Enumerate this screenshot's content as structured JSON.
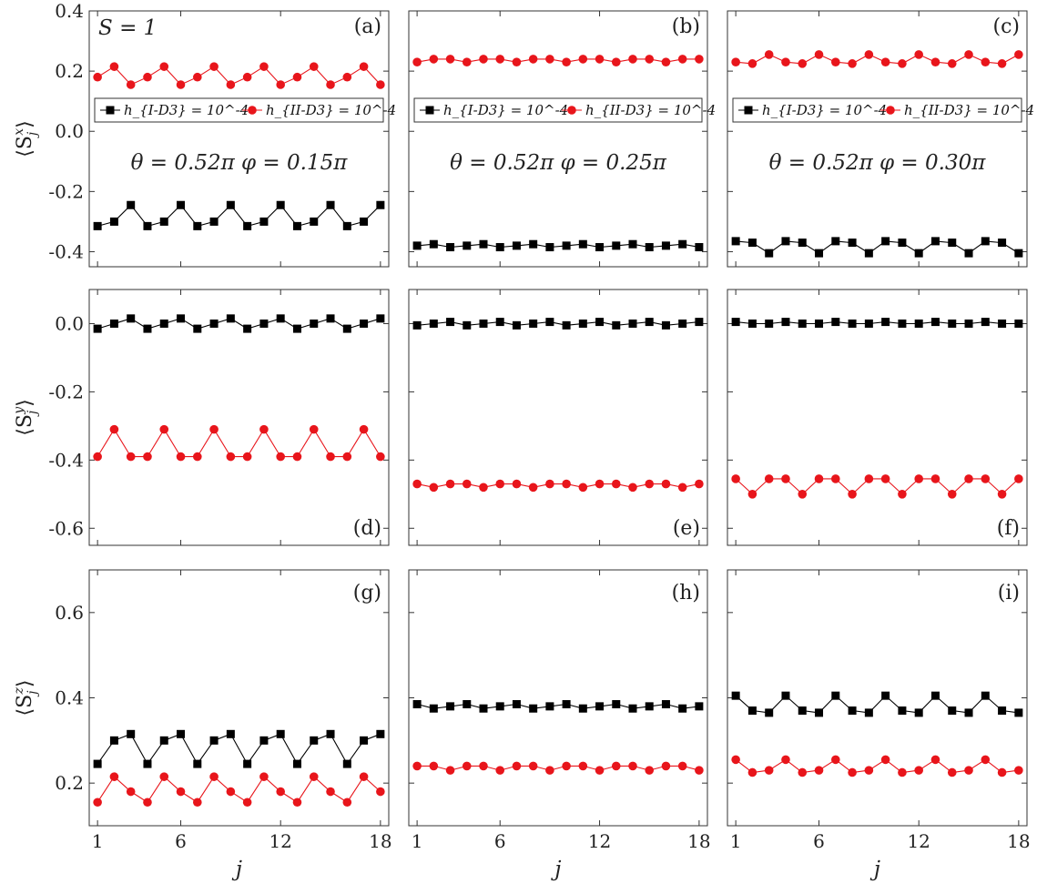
{
  "chart_data": {
    "type": "line",
    "x_label": "j",
    "x_ticks": [
      1,
      6,
      12,
      18
    ],
    "x": [
      1,
      2,
      3,
      4,
      5,
      6,
      7,
      8,
      9,
      10,
      11,
      12,
      13,
      14,
      15,
      16,
      17,
      18
    ],
    "panel_text": "S = 1",
    "legend_labels": [
      "h_{I-D3} = 10^-4",
      "h_{II-D3} = 10^-4"
    ],
    "colors": {
      "series1": "#000000",
      "series2": "#e8151b"
    },
    "rows": [
      {
        "ylabel": "⟨S_j^x⟩",
        "ylim": [
          -0.45,
          0.4
        ],
        "yticks": [
          0.4,
          0.2,
          0.0,
          -0.2,
          -0.4
        ],
        "ytick_labels": [
          "0.4",
          "0.2",
          "0.0",
          "-0.2",
          "-0.4"
        ]
      },
      {
        "ylabel": "⟨S_j^y⟩",
        "ylim": [
          -0.65,
          0.1
        ],
        "yticks": [
          0.0,
          -0.2,
          -0.4,
          -0.6
        ],
        "ytick_labels": [
          "0.0",
          "-0.2",
          "-0.4",
          "-0.6"
        ]
      },
      {
        "ylabel": "⟨S_j^z⟩",
        "ylim": [
          0.1,
          0.7
        ],
        "yticks": [
          0.6,
          0.4,
          0.2
        ],
        "ytick_labels": [
          "0.6",
          "0.4",
          "0.2"
        ]
      }
    ],
    "columns": [
      {
        "annotation": "θ = 0.52π  φ = 0.15π"
      },
      {
        "annotation": "θ = 0.52π  φ = 0.25π"
      },
      {
        "annotation": "θ = 0.52π  φ = 0.30π"
      }
    ],
    "panels": [
      {
        "label": "(a)",
        "series": [
          {
            "name": "h_{I-D3} = 10^-4",
            "values": [
              -0.315,
              -0.3,
              -0.245,
              -0.315,
              -0.3,
              -0.245,
              -0.315,
              -0.3,
              -0.245,
              -0.315,
              -0.3,
              -0.245,
              -0.315,
              -0.3,
              -0.245,
              -0.315,
              -0.3,
              -0.245
            ]
          },
          {
            "name": "h_{II-D3} = 10^-4",
            "values": [
              0.18,
              0.215,
              0.155,
              0.18,
              0.215,
              0.155,
              0.18,
              0.215,
              0.155,
              0.18,
              0.215,
              0.155,
              0.18,
              0.215,
              0.155,
              0.18,
              0.215,
              0.155
            ]
          }
        ]
      },
      {
        "label": "(b)",
        "series": [
          {
            "name": "h_{I-D3} = 10^-4",
            "values": [
              -0.38,
              -0.375,
              -0.385,
              -0.38,
              -0.375,
              -0.385,
              -0.38,
              -0.375,
              -0.385,
              -0.38,
              -0.375,
              -0.385,
              -0.38,
              -0.375,
              -0.385,
              -0.38,
              -0.375,
              -0.385
            ]
          },
          {
            "name": "h_{II-D3} = 10^-4",
            "values": [
              0.23,
              0.24,
              0.24,
              0.23,
              0.24,
              0.24,
              0.23,
              0.24,
              0.24,
              0.23,
              0.24,
              0.24,
              0.23,
              0.24,
              0.24,
              0.23,
              0.24,
              0.24
            ]
          }
        ]
      },
      {
        "label": "(c)",
        "series": [
          {
            "name": "h_{I-D3} = 10^-4",
            "values": [
              -0.365,
              -0.37,
              -0.405,
              -0.365,
              -0.37,
              -0.405,
              -0.365,
              -0.37,
              -0.405,
              -0.365,
              -0.37,
              -0.405,
              -0.365,
              -0.37,
              -0.405,
              -0.365,
              -0.37,
              -0.405
            ]
          },
          {
            "name": "h_{II-D3} = 10^-4",
            "values": [
              0.23,
              0.225,
              0.255,
              0.23,
              0.225,
              0.255,
              0.23,
              0.225,
              0.255,
              0.23,
              0.225,
              0.255,
              0.23,
              0.225,
              0.255,
              0.23,
              0.225,
              0.255
            ]
          }
        ]
      },
      {
        "label": "(d)",
        "series": [
          {
            "name": "h_{I-D3} = 10^-4",
            "values": [
              -0.015,
              0.0,
              0.015,
              -0.015,
              0.0,
              0.015,
              -0.015,
              0.0,
              0.015,
              -0.015,
              0.0,
              0.015,
              -0.015,
              0.0,
              0.015,
              -0.015,
              0.0,
              0.015
            ]
          },
          {
            "name": "h_{II-D3} = 10^-4",
            "values": [
              -0.39,
              -0.31,
              -0.39,
              -0.39,
              -0.31,
              -0.39,
              -0.39,
              -0.31,
              -0.39,
              -0.39,
              -0.31,
              -0.39,
              -0.39,
              -0.31,
              -0.39,
              -0.39,
              -0.31,
              -0.39
            ]
          }
        ]
      },
      {
        "label": "(e)",
        "series": [
          {
            "name": "h_{I-D3} = 10^-4",
            "values": [
              -0.005,
              0.0,
              0.005,
              -0.005,
              0.0,
              0.005,
              -0.005,
              0.0,
              0.005,
              -0.005,
              0.0,
              0.005,
              -0.005,
              0.0,
              0.005,
              -0.005,
              0.0,
              0.005
            ]
          },
          {
            "name": "h_{II-D3} = 10^-4",
            "values": [
              -0.47,
              -0.48,
              -0.47,
              -0.47,
              -0.48,
              -0.47,
              -0.47,
              -0.48,
              -0.47,
              -0.47,
              -0.48,
              -0.47,
              -0.47,
              -0.48,
              -0.47,
              -0.47,
              -0.48,
              -0.47
            ]
          }
        ]
      },
      {
        "label": "(f)",
        "series": [
          {
            "name": "h_{I-D3} = 10^-4",
            "values": [
              0.005,
              0.0,
              0.0,
              0.005,
              0.0,
              0.0,
              0.005,
              0.0,
              0.0,
              0.005,
              0.0,
              0.0,
              0.005,
              0.0,
              0.0,
              0.005,
              0.0,
              0.0
            ]
          },
          {
            "name": "h_{II-D3} = 10^-4",
            "values": [
              -0.455,
              -0.5,
              -0.455,
              -0.455,
              -0.5,
              -0.455,
              -0.455,
              -0.5,
              -0.455,
              -0.455,
              -0.5,
              -0.455,
              -0.455,
              -0.5,
              -0.455,
              -0.455,
              -0.5,
              -0.455
            ]
          }
        ]
      },
      {
        "label": "(g)",
        "series": [
          {
            "name": "h_{I-D3} = 10^-4",
            "values": [
              0.245,
              0.3,
              0.315,
              0.245,
              0.3,
              0.315,
              0.245,
              0.3,
              0.315,
              0.245,
              0.3,
              0.315,
              0.245,
              0.3,
              0.315,
              0.245,
              0.3,
              0.315
            ]
          },
          {
            "name": "h_{II-D3} = 10^-4",
            "values": [
              0.155,
              0.215,
              0.18,
              0.155,
              0.215,
              0.18,
              0.155,
              0.215,
              0.18,
              0.155,
              0.215,
              0.18,
              0.155,
              0.215,
              0.18,
              0.155,
              0.215,
              0.18
            ]
          }
        ]
      },
      {
        "label": "(h)",
        "series": [
          {
            "name": "h_{I-D3} = 10^-4",
            "values": [
              0.385,
              0.375,
              0.38,
              0.385,
              0.375,
              0.38,
              0.385,
              0.375,
              0.38,
              0.385,
              0.375,
              0.38,
              0.385,
              0.375,
              0.38,
              0.385,
              0.375,
              0.38
            ]
          },
          {
            "name": "h_{II-D3} = 10^-4",
            "values": [
              0.24,
              0.24,
              0.23,
              0.24,
              0.24,
              0.23,
              0.24,
              0.24,
              0.23,
              0.24,
              0.24,
              0.23,
              0.24,
              0.24,
              0.23,
              0.24,
              0.24,
              0.23
            ]
          }
        ]
      },
      {
        "label": "(i)",
        "series": [
          {
            "name": "h_{I-D3} = 10^-4",
            "values": [
              0.405,
              0.37,
              0.365,
              0.405,
              0.37,
              0.365,
              0.405,
              0.37,
              0.365,
              0.405,
              0.37,
              0.365,
              0.405,
              0.37,
              0.365,
              0.405,
              0.37,
              0.365
            ]
          },
          {
            "name": "h_{II-D3} = 10^-4",
            "values": [
              0.255,
              0.225,
              0.23,
              0.255,
              0.225,
              0.23,
              0.255,
              0.225,
              0.23,
              0.255,
              0.225,
              0.23,
              0.255,
              0.225,
              0.23,
              0.255,
              0.225,
              0.23
            ]
          }
        ]
      }
    ]
  }
}
